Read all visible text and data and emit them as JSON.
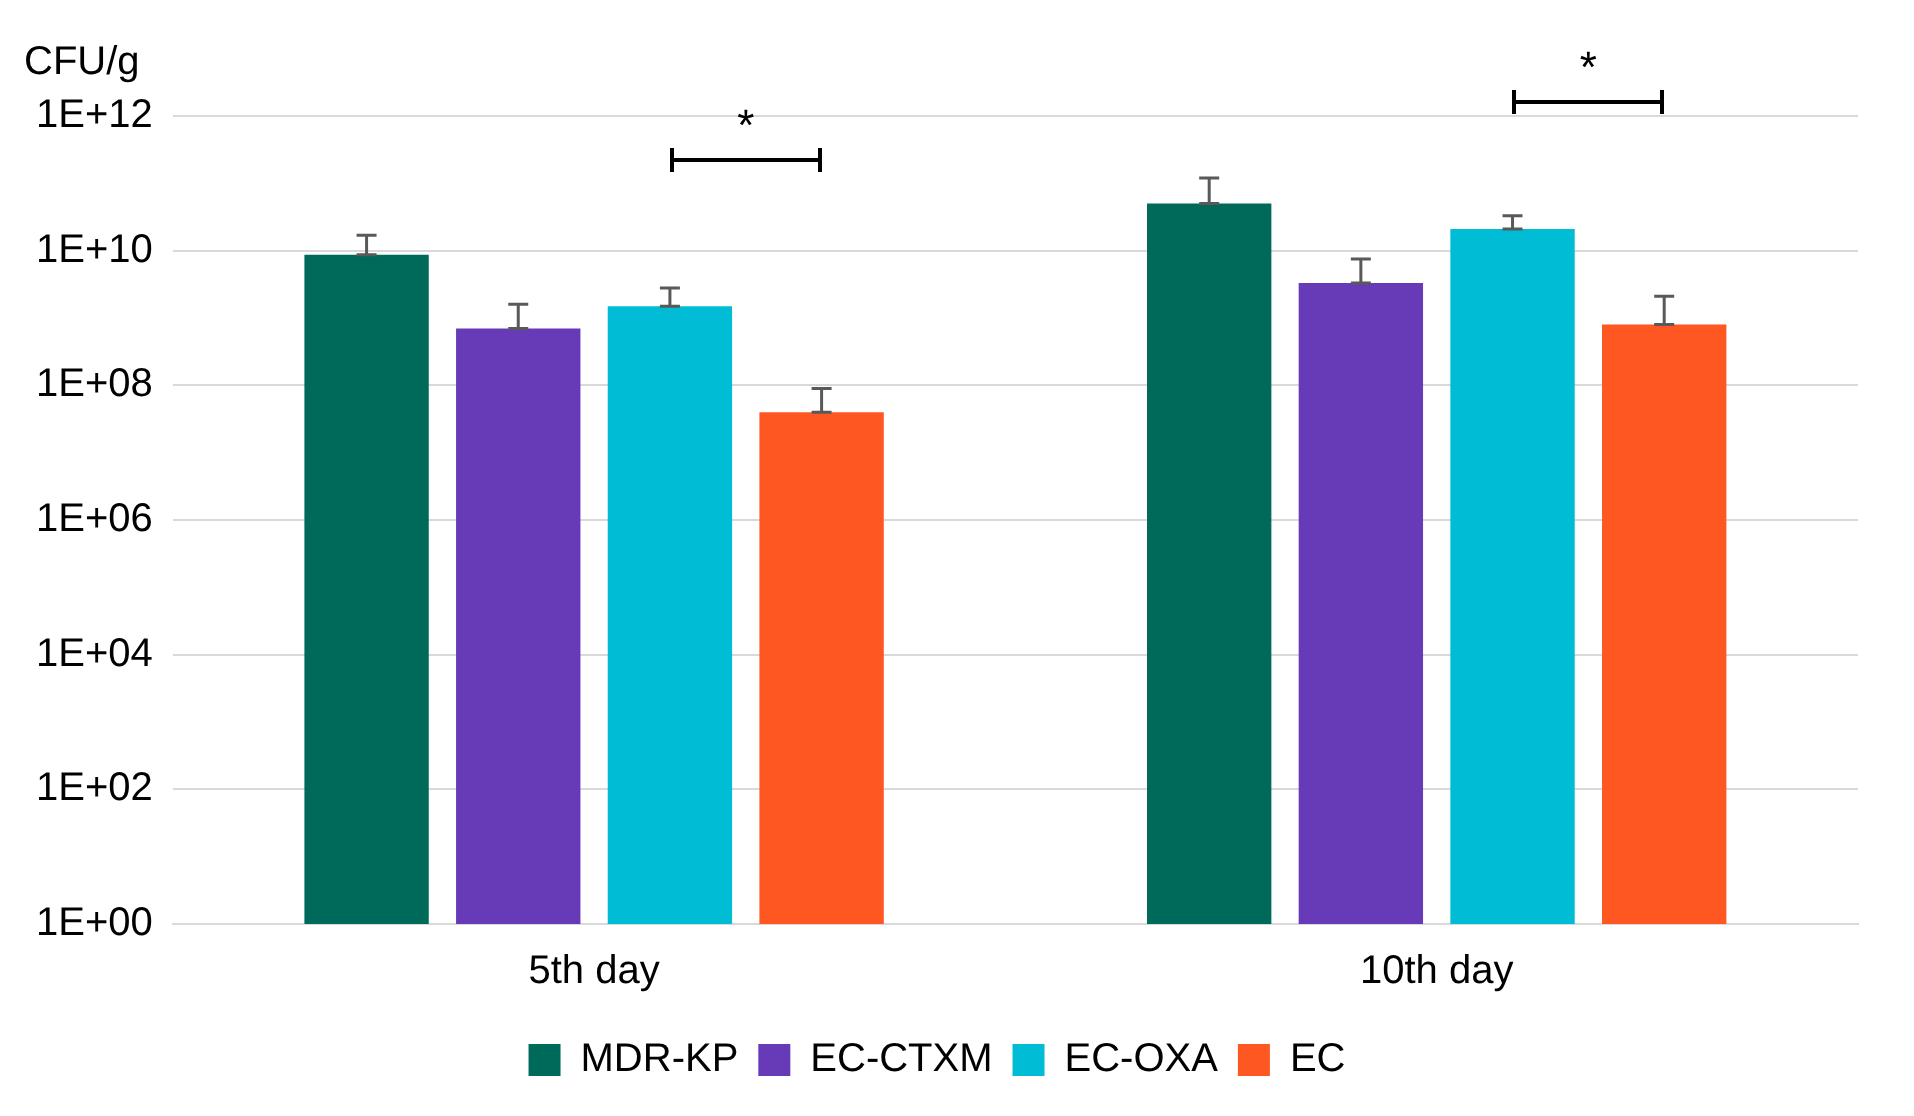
{
  "chart_data": {
    "type": "bar",
    "ylabel": "CFU/g",
    "categories": [
      "5th day",
      "10th day"
    ],
    "series": [
      {
        "name": "MDR-KP",
        "color": "#006a5a",
        "values": [
          8700000000.0,
          50000000000.0
        ],
        "errors": [
          [
            8700000000.0,
            17000000000.0
          ],
          [
            50000000000.0,
            120000000000.0
          ]
        ]
      },
      {
        "name": "EC-CTXM",
        "color": "#673ab7",
        "values": [
          700000000.0,
          3300000000.0
        ],
        "errors": [
          [
            700000000.0,
            1600000000.0
          ],
          [
            3300000000.0,
            7500000000.0
          ]
        ]
      },
      {
        "name": "EC-OXA",
        "color": "#00bcd4",
        "values": [
          1500000000.0,
          21000000000.0
        ],
        "errors": [
          [
            1500000000.0,
            2800000000.0
          ],
          [
            21000000000.0,
            33000000000.0
          ]
        ]
      },
      {
        "name": "EC",
        "color": "#ff5722",
        "values": [
          40000000.0,
          800000000.0
        ],
        "errors": [
          [
            40000000.0,
            90000000.0
          ],
          [
            800000000.0,
            2100000000.0
          ]
        ]
      }
    ],
    "log": "y",
    "ylim": [
      1,
      1000000000000.0
    ],
    "yticks": [
      {
        "value": 1,
        "label": "1E+00"
      },
      {
        "value": 100,
        "label": "1E+02"
      },
      {
        "value": 10000,
        "label": "1E+04"
      },
      {
        "value": 1000000,
        "label": "1E+06"
      },
      {
        "value": 100000000,
        "label": "1E+08"
      },
      {
        "value": 10000000000,
        "label": "1E+10"
      },
      {
        "value": 1000000000000,
        "label": "1E+12"
      }
    ],
    "grid": "y",
    "legend": "bottom",
    "annotations": [
      "*",
      "*"
    ]
  }
}
